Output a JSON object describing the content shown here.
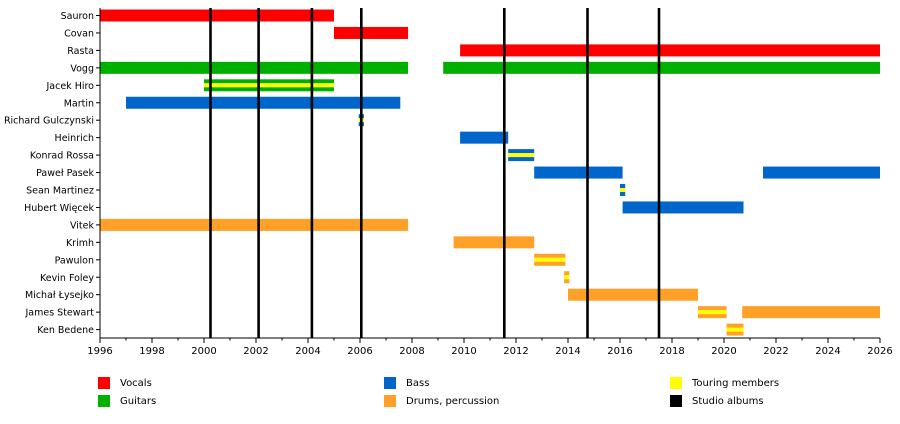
{
  "chart_data": {
    "type": "timeline",
    "members": [
      "Sauron",
      "Covan",
      "Rasta",
      "Vogg",
      "Jacek Hiro",
      "Martin",
      "Richard Gulczynski",
      "Heinrich",
      "Konrad Rossa",
      "Paweł Pasek",
      "Sean Martinez",
      "Hubert Więcek",
      "Vitek",
      "Krimh",
      "Pawulon",
      "Kevin Foley",
      "Michał Łysejko",
      "James Stewart",
      "Ken Bedene"
    ],
    "roles": [
      {
        "key": "vocals",
        "name": "Vocals",
        "color": "#ff0000"
      },
      {
        "key": "guitars",
        "name": "Guitars",
        "color": "#00b000"
      },
      {
        "key": "bass",
        "name": "Bass",
        "color": "#0066cc"
      },
      {
        "key": "drums",
        "name": "Drums, percussion",
        "color": "#ffa028"
      },
      {
        "key": "touring",
        "name": "Touring members",
        "color": "#ffff00"
      },
      {
        "key": "albums",
        "name": "Studio albums",
        "color": "#000000"
      }
    ],
    "periods": [
      {
        "member": "Sauron",
        "role": "vocals",
        "start": 1996.0,
        "end": 2005.0
      },
      {
        "member": "Covan",
        "role": "vocals",
        "start": 2005.0,
        "end": 2007.85
      },
      {
        "member": "Rasta",
        "role": "vocals",
        "start": 2009.85,
        "end": 2026.0
      },
      {
        "member": "Vogg",
        "role": "guitars",
        "start": 1996.0,
        "end": 2007.85
      },
      {
        "member": "Vogg",
        "role": "guitars",
        "start": 2009.2,
        "end": 2026.0
      },
      {
        "member": "Jacek Hiro",
        "role": "guitars",
        "start": 2000.0,
        "end": 2005.0,
        "touring": true
      },
      {
        "member": "Martin",
        "role": "bass",
        "start": 1997.0,
        "end": 2007.55
      },
      {
        "member": "Richard Gulczynski",
        "role": "bass",
        "start": 2005.95,
        "end": 2006.15,
        "touring": true
      },
      {
        "member": "Heinrich",
        "role": "bass",
        "start": 2009.85,
        "end": 2011.7
      },
      {
        "member": "Konrad Rossa",
        "role": "bass",
        "start": 2011.7,
        "end": 2012.7,
        "touring": true
      },
      {
        "member": "Paweł Pasek",
        "role": "bass",
        "start": 2012.7,
        "end": 2016.1
      },
      {
        "member": "Paweł Pasek",
        "role": "bass",
        "start": 2021.5,
        "end": 2026.0
      },
      {
        "member": "Sean Martinez",
        "role": "bass",
        "start": 2016.0,
        "end": 2016.2,
        "touring": true
      },
      {
        "member": "Hubert Więcek",
        "role": "bass",
        "start": 2016.1,
        "end": 2020.75
      },
      {
        "member": "Vitek",
        "role": "drums",
        "start": 1996.0,
        "end": 2007.85
      },
      {
        "member": "Krimh",
        "role": "drums",
        "start": 2009.6,
        "end": 2012.7
      },
      {
        "member": "Pawulon",
        "role": "drums",
        "start": 2012.7,
        "end": 2013.9,
        "touring": true
      },
      {
        "member": "Kevin Foley",
        "role": "drums",
        "start": 2013.85,
        "end": 2014.05,
        "touring": true
      },
      {
        "member": "Michał Łysejko",
        "role": "drums",
        "start": 2014.0,
        "end": 2019.0
      },
      {
        "member": "James Stewart",
        "role": "drums",
        "start": 2019.0,
        "end": 2020.1,
        "touring": true
      },
      {
        "member": "James Stewart",
        "role": "drums",
        "start": 2020.7,
        "end": 2026.0
      },
      {
        "member": "Ken Bedene",
        "role": "drums",
        "start": 2020.1,
        "end": 2020.75,
        "touring": true
      }
    ],
    "studio_albums": [
      2000.25,
      2002.1,
      2004.15,
      2006.05,
      2011.55,
      2014.75,
      2017.5
    ],
    "xlim": [
      1996,
      2026
    ],
    "x_ticks": [
      "1996",
      "1998",
      "2000",
      "2002",
      "2004",
      "2006",
      "2008",
      "2010",
      "2012",
      "2014",
      "2016",
      "2018",
      "2020",
      "2022",
      "2024",
      "2026"
    ],
    "minor_ticks_per_year": 1,
    "legend_placement": "bottom",
    "title": "",
    "xlabel": "",
    "ylabel": ""
  }
}
